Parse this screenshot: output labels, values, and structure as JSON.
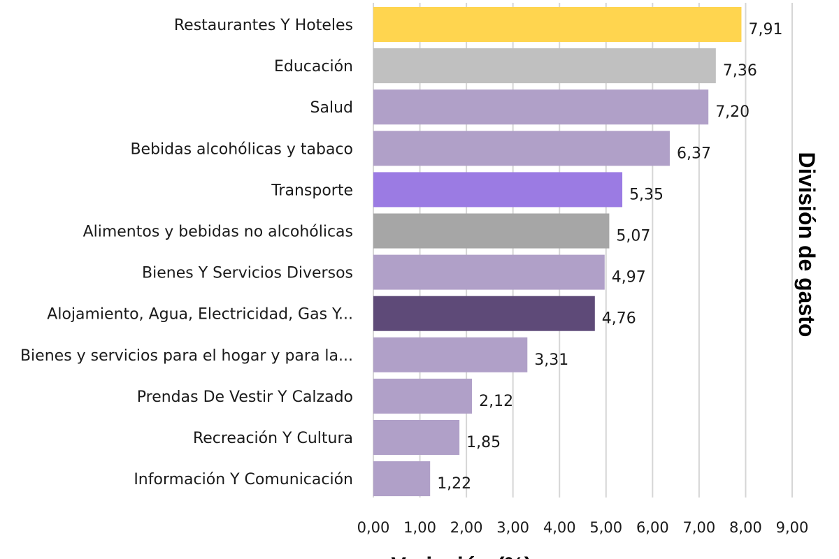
{
  "chart_data": {
    "type": "bar",
    "orientation": "horizontal",
    "categories": [
      "Restaurantes Y Hoteles",
      "Educación",
      "Salud",
      "Bebidas alcohólicas y tabaco",
      "Transporte",
      "Alimentos y bebidas no alcohólicas",
      "Bienes Y Servicios Diversos",
      "Alojamiento, Agua, Electricidad, Gas Y...",
      "Bienes y servicios para el hogar y para la...",
      "Prendas De Vestir Y Calzado",
      "Recreación Y Cultura",
      "Información Y Comunicación"
    ],
    "values": [
      7.91,
      7.36,
      7.2,
      6.37,
      5.35,
      5.07,
      4.97,
      4.76,
      3.31,
      2.12,
      1.85,
      1.22
    ],
    "value_labels": [
      "7,91",
      "7,36",
      "7,20",
      "6,37",
      "5,35",
      "5,07",
      "4,97",
      "4,76",
      "3,31",
      "2,12",
      "1,85",
      "1,22"
    ],
    "colors": [
      "#FFD54F",
      "#C0C0C0",
      "#B0A0C8",
      "#B0A0C8",
      "#9B7BE3",
      "#A6A6A6",
      "#B0A0C8",
      "#5E4A78",
      "#B0A0C8",
      "#B0A0C8",
      "#B0A0C8",
      "#B0A0C8"
    ],
    "xlim": [
      0,
      9
    ],
    "xticks": [
      "0,00",
      "1,00",
      "2,00",
      "3,00",
      "4,00",
      "5,00",
      "6,00",
      "7,00",
      "8,00",
      "9,00"
    ],
    "xlabel": "Variación (%)",
    "ylabel": "División de gasto",
    "grid": "vertical"
  }
}
